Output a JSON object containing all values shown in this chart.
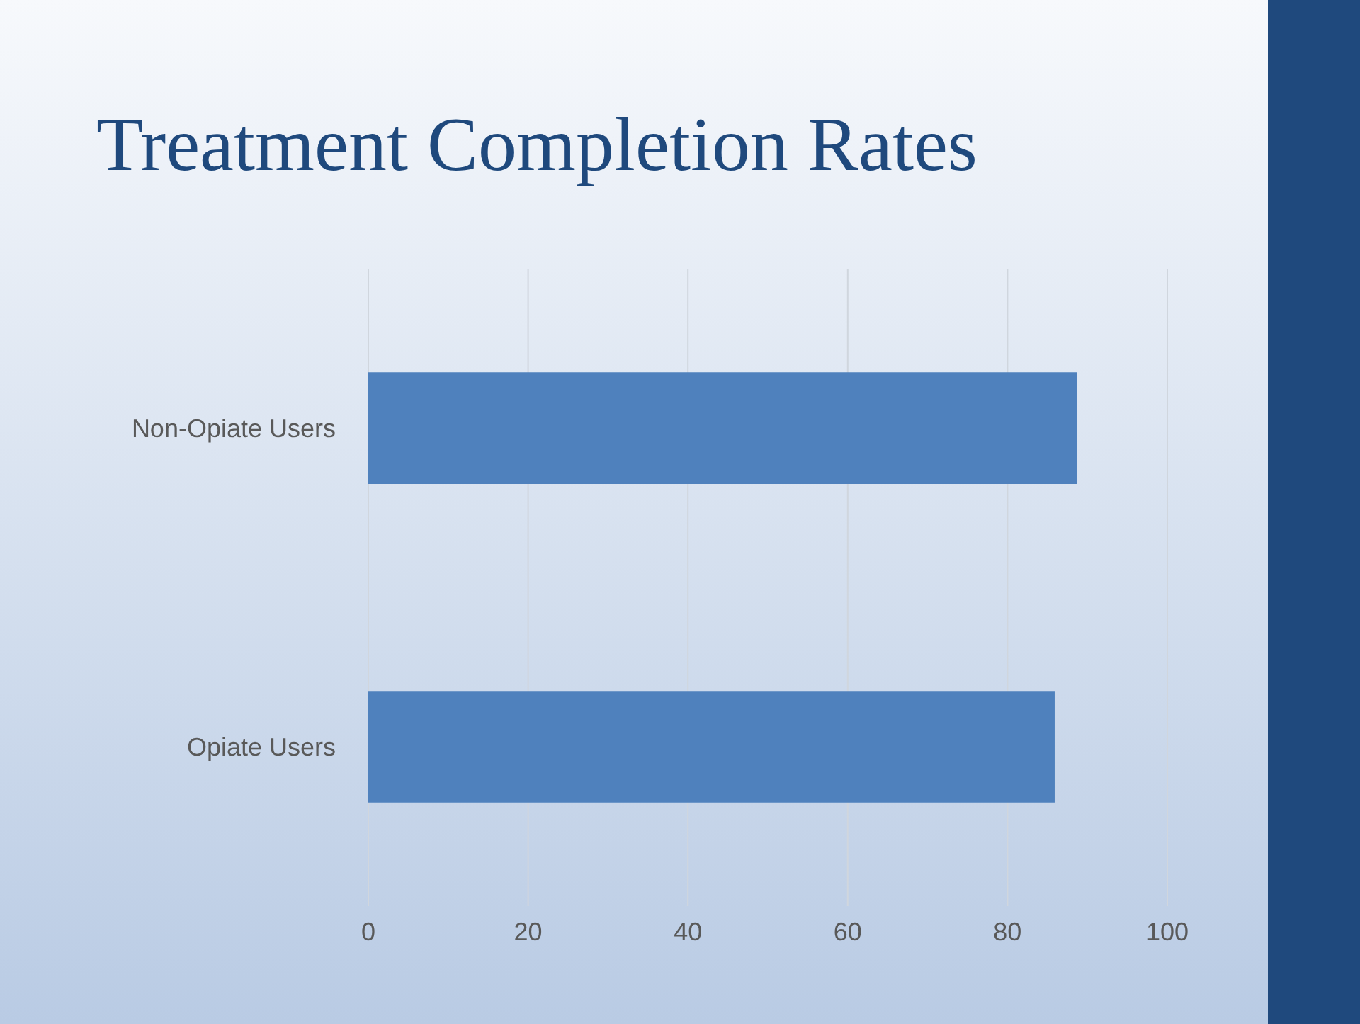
{
  "chart_data": {
    "type": "bar",
    "orientation": "horizontal",
    "title": "Treatment Completion Rates",
    "categories": [
      "Non-Opiate Users",
      "Opiate Users"
    ],
    "values": [
      88.7,
      85.9
    ],
    "color": "#4f81bd",
    "xlim": [
      0,
      100
    ],
    "xticks": [
      0,
      20,
      40,
      60,
      80,
      100
    ],
    "grid": "x"
  }
}
